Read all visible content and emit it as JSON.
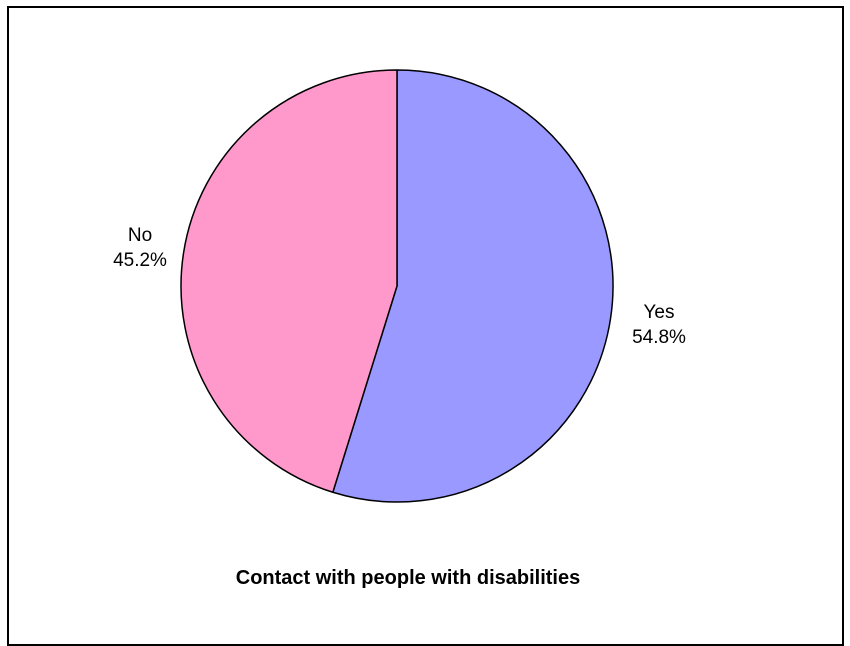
{
  "chart_data": {
    "type": "pie",
    "title": "Contact with people with disabilities",
    "slices": [
      {
        "label": "Yes",
        "value": 54.8,
        "value_label": "54.8%",
        "color": "#9999FF"
      },
      {
        "label": "No",
        "value": 45.2,
        "value_label": "45.2%",
        "color": "#FF99CC"
      }
    ],
    "start_angle": "12 o'clock, clockwise",
    "outline_color": "#000000",
    "legend": "none"
  }
}
